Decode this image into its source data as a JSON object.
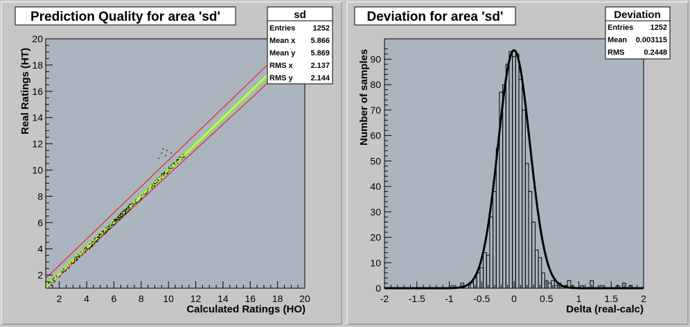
{
  "chart_data": [
    {
      "type": "scatter",
      "title": "Prediction Quality for area 'sd'",
      "xlabel": "Calculated Ratings (HO)",
      "ylabel": "Real Ratings (HT)",
      "xlim": [
        1,
        20
      ],
      "ylim": [
        1,
        20
      ],
      "xticks": [
        2,
        4,
        6,
        8,
        10,
        12,
        14,
        16,
        18,
        20
      ],
      "yticks": [
        2,
        4,
        6,
        8,
        10,
        12,
        14,
        16,
        18,
        20
      ],
      "bands": [
        {
          "name": "inner",
          "offset": 0.25,
          "color": "#7fff00"
        },
        {
          "name": "outer",
          "offset": 0.75,
          "color": "#ff0000"
        }
      ],
      "diagonal_color": "#ffff66",
      "point_color": "#000000",
      "outliers": [
        [
          9.6,
          11.6
        ],
        [
          9.8,
          11.1
        ],
        [
          9.9,
          11.5
        ],
        [
          10.2,
          11.3
        ],
        [
          9.3,
          10.9
        ],
        [
          9.5,
          11.3
        ]
      ],
      "stats": {
        "name": "sd",
        "rows": [
          {
            "label": "Entries",
            "value": "1252"
          },
          {
            "label": "Mean x",
            "value": "5.866"
          },
          {
            "label": "Mean y",
            "value": "5.869"
          },
          {
            "label": "RMS x",
            "value": "2.137"
          },
          {
            "label": "RMS y",
            "value": "2.144"
          }
        ]
      },
      "grid": false
    },
    {
      "type": "line",
      "title": "Deviation for area 'sd'",
      "xlabel": "Delta (real-calc)",
      "ylabel": "Number of samples",
      "xlim": [
        -2,
        2
      ],
      "ylim": [
        0,
        98
      ],
      "xticks": [
        -2,
        -1.5,
        -1,
        -0.5,
        0,
        0.5,
        1,
        1.5,
        2
      ],
      "xticklabels": [
        "-2",
        "-1.5",
        "-1",
        "-0.5",
        "0",
        "0.5",
        "1",
        "1.5",
        "2"
      ],
      "yticks": [
        0,
        10,
        20,
        30,
        40,
        50,
        60,
        70,
        80,
        90
      ],
      "series": [
        {
          "style": "histogram",
          "x": [
            -0.95,
            -0.9,
            -0.85,
            -0.8,
            -0.75,
            -0.7,
            -0.65,
            -0.6,
            -0.55,
            -0.5,
            -0.45,
            -0.4,
            -0.35,
            -0.3,
            -0.25,
            -0.2,
            -0.15,
            -0.1,
            -0.05,
            0.0,
            0.05,
            0.1,
            0.15,
            0.2,
            0.25,
            0.3,
            0.35,
            0.4,
            0.45,
            0.5,
            0.55,
            0.6,
            0.65,
            0.7,
            0.75,
            0.8,
            0.85,
            0.9,
            0.95,
            1.0,
            1.05,
            1.1,
            1.15,
            1.2,
            1.25,
            1.3,
            1.35,
            1.4,
            1.45,
            1.5,
            1.55,
            1.6,
            1.65,
            1.7,
            1.75,
            1.8,
            1.85,
            1.9
          ],
          "values": [
            1,
            0,
            0,
            2,
            0,
            0,
            2,
            4,
            6,
            8,
            14,
            13,
            28,
            38,
            55,
            77,
            80,
            88,
            93,
            91,
            92,
            82,
            70,
            49,
            38,
            26,
            15,
            12,
            6,
            3,
            2,
            3,
            1,
            2,
            0,
            1,
            3,
            1,
            0,
            0,
            1,
            0,
            0,
            3,
            0,
            0,
            1,
            0,
            0,
            0,
            0,
            1,
            0,
            2,
            0,
            1,
            0,
            0
          ]
        },
        {
          "style": "fit",
          "function": "gaussian",
          "amplitude": 93.5,
          "mean": 0.0,
          "sigma": 0.245,
          "xrange": [
            -2,
            2
          ]
        }
      ],
      "stats": {
        "name": "Deviation",
        "rows": [
          {
            "label": "Entries",
            "value": "1252"
          },
          {
            "label": "Mean",
            "value": "0.003115"
          },
          {
            "label": "RMS",
            "value": "0.2448"
          }
        ]
      },
      "grid": false
    }
  ]
}
